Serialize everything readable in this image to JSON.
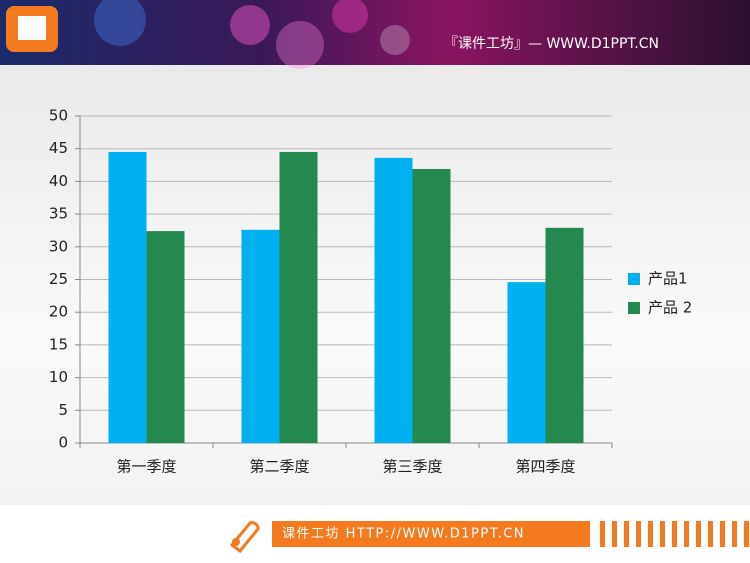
{
  "header": {
    "text": "『课件工坊』— WWW.D1PPT.CN"
  },
  "footer": {
    "text": "课件工坊 HTTP://WWW.D1PPT.CN"
  },
  "chart_data": {
    "type": "bar",
    "categories": [
      "第一季度",
      "第二季度",
      "第三季度",
      "第四季度"
    ],
    "series": [
      {
        "name": "产品1",
        "color": "#00b0f0",
        "values": [
          44.5,
          32.6,
          43.6,
          24.6
        ]
      },
      {
        "name": "产品 2",
        "color": "#23894f",
        "values": [
          32.4,
          44.5,
          41.9,
          32.9
        ]
      }
    ],
    "ylim": [
      0,
      50
    ],
    "yticks": [
      0,
      5,
      10,
      15,
      20,
      25,
      30,
      35,
      40,
      45,
      50
    ],
    "grid": true,
    "legend": "right"
  }
}
